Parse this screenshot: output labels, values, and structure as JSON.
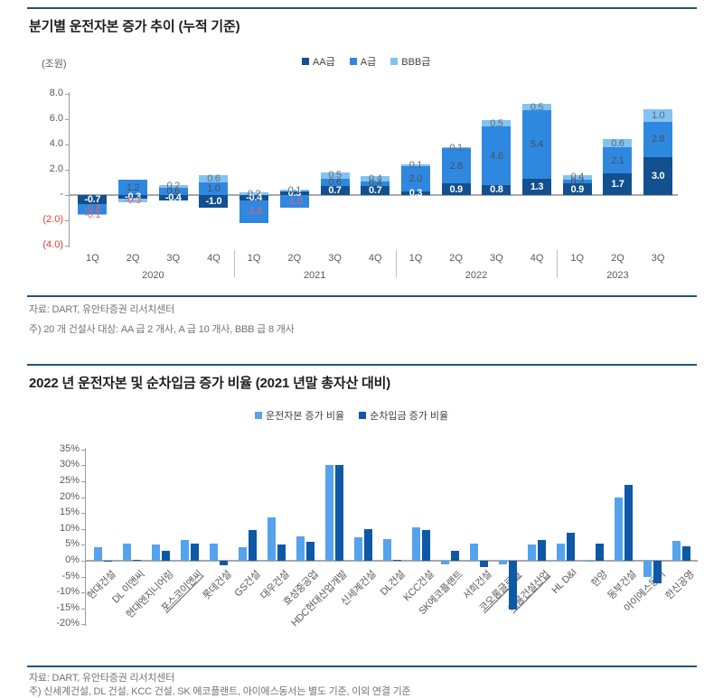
{
  "section1": {
    "title": "분기별 운전자본 증가 추이 (누적 기준)",
    "unit_label": "(조원)",
    "source": "자료: DART, 유안타증권 리서치센터",
    "note": "주) 20 개 건설사 대상: AA 급 2 개사, A 급 10 개사, BBB 급 8 개사"
  },
  "section2": {
    "title": "2022 년 운전자본 및 순차입금 증가 비율 (2021 년말 총자산 대비)",
    "source": "자료: DART, 유안타증권 리서치센터",
    "note": "주) 신세계건설, DL 건설, KCC 건설, SK 에코플랜트, 아이에스동서는 별도 기준, 이외 연결 기준"
  },
  "colors": {
    "rule": "#24527e",
    "aa": "#12508f",
    "a": "#2f88e0",
    "bbb": "#82c3f2",
    "wc": "#55a3ec",
    "netdebt": "#0e58a8",
    "negative_axis_label": "#e03c31"
  },
  "chart_data": [
    {
      "type": "bar",
      "stacked": true,
      "title": "분기별 운전자본 증가 추이 (누적 기준)",
      "unit": "조원",
      "categories": [
        "1Q",
        "2Q",
        "3Q",
        "4Q",
        "1Q",
        "2Q",
        "3Q",
        "4Q",
        "1Q",
        "2Q",
        "3Q",
        "4Q",
        "1Q",
        "2Q",
        "3Q"
      ],
      "year_groups": [
        {
          "label": "2020",
          "span": 4
        },
        {
          "label": "2021",
          "span": 4
        },
        {
          "label": "2022",
          "span": 4
        },
        {
          "label": "2023",
          "span": 3
        }
      ],
      "series": [
        {
          "name": "AA급",
          "color": "#12508f",
          "values": [
            -0.7,
            -0.3,
            -0.4,
            -1.0,
            -0.4,
            0.3,
            0.7,
            0.7,
            0.3,
            0.9,
            0.8,
            1.3,
            0.9,
            1.7,
            3.0
          ]
        },
        {
          "name": "A급",
          "color": "#2f88e0",
          "values": [
            -0.8,
            1.2,
            0.6,
            1.0,
            -1.8,
            -1.0,
            0.6,
            0.4,
            2.0,
            2.8,
            4.6,
            5.4,
            0.3,
            2.1,
            2.8
          ]
        },
        {
          "name": "BBB급",
          "color": "#82c3f2",
          "values": [
            -0.1,
            -0.3,
            0.2,
            0.6,
            0.2,
            0.1,
            0.5,
            0.4,
            0.1,
            0.1,
            0.5,
            0.5,
            0.4,
            0.6,
            1.0
          ]
        }
      ],
      "ylim": [
        -4,
        8
      ],
      "ytick_values": [
        8,
        6,
        4,
        2,
        0,
        -2,
        -4
      ],
      "ytick_labels": [
        "8.0",
        "6.0",
        "4.0",
        "2.0",
        "-",
        "(2.0)",
        "(4.0)"
      ],
      "legend_position": "top",
      "grid": false
    },
    {
      "type": "bar",
      "grouped": true,
      "title": "2022 년 운전자본 및 순차입금 증가 비율 (2021 년말 총자산 대비)",
      "unit": "%",
      "categories": [
        "현대건설",
        "DL 이앤씨",
        "현대엔지니어링",
        "포스코이앤씨",
        "롯데건설",
        "GS건설",
        "대우건설",
        "효성중공업",
        "HDC현대산업개발",
        "신세계건설",
        "DL건설",
        "KCC건설",
        "SK에코플랜트",
        "서희건설",
        "코오롱글로벌",
        "계룡건설산업",
        "HL D&I",
        "한양",
        "동부건설",
        "아이에스동서",
        "한신공영"
      ],
      "underlined_categories": [
        "포스코이앤씨",
        "코오롱글로벌",
        "계룡건설산업"
      ],
      "series": [
        {
          "name": "운전자본 증가 비율",
          "color": "#55a3ec",
          "values": [
            4.2,
            5.5,
            5.0,
            6.5,
            5.5,
            4.3,
            13.5,
            7.7,
            30.0,
            7.3,
            6.7,
            10.5,
            -1.0,
            5.5,
            -1.0,
            5.0,
            5.5,
            -0.2,
            20.0,
            -5.0,
            6.3
          ]
        },
        {
          "name": "순차입금 증가 비율",
          "color": "#0e58a8",
          "values": [
            -0.3,
            0.3,
            3.0,
            5.5,
            -1.3,
            9.8,
            5.0,
            6.0,
            30.0,
            10.0,
            0.3,
            9.7,
            3.0,
            -2.0,
            -15.3,
            6.5,
            8.7,
            5.5,
            24.0,
            -7.0,
            4.5
          ]
        }
      ],
      "ylim": [
        -20,
        35
      ],
      "ytick_step": 5,
      "legend_position": "top",
      "grid": false
    }
  ]
}
